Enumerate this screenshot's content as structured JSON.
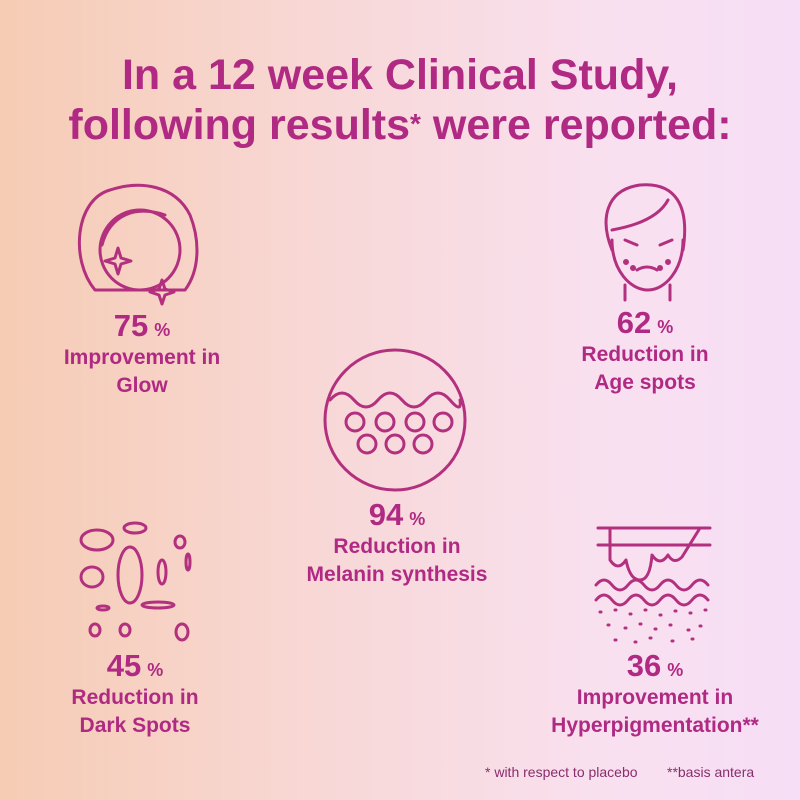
{
  "title": {
    "line1": "In a 12 week Clinical Study,",
    "line2_start": "following results",
    "line2_marker": "*",
    "line2_end": "were reported:"
  },
  "stats": [
    {
      "value": 75,
      "unit": "%",
      "label": [
        "Improvement in",
        "Glow"
      ]
    },
    {
      "value": 62,
      "unit": "%",
      "label": [
        "Reduction in",
        "Age spots"
      ]
    },
    {
      "value": 94,
      "unit": "%",
      "label": [
        "Reduction in",
        "Melanin synthesis"
      ]
    },
    {
      "value": 45,
      "unit": "%",
      "label": [
        "Reduction in",
        "Dark Spots"
      ]
    },
    {
      "value": 36,
      "unit": "%",
      "label": [
        "Improvement in",
        "Hyperpigmentation**"
      ]
    }
  ],
  "footnotes": [
    "* with respect to placebo",
    "**basis antera"
  ]
}
